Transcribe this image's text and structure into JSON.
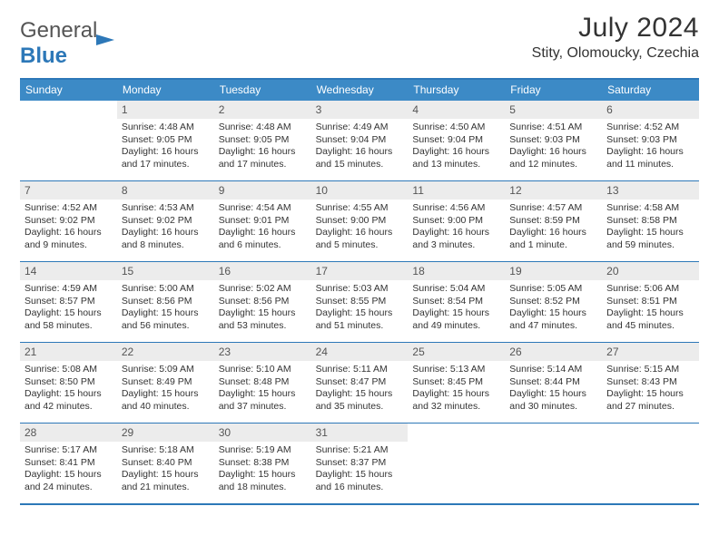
{
  "brand": {
    "part1": "General",
    "part2": "Blue"
  },
  "title": "July 2024",
  "location": "Stity, Olomoucky, Czechia",
  "dow": [
    "Sunday",
    "Monday",
    "Tuesday",
    "Wednesday",
    "Thursday",
    "Friday",
    "Saturday"
  ],
  "colors": {
    "accent": "#2d78b8",
    "header_bg": "#3c8ac6",
    "daynum_bg": "#ececec",
    "text": "#333333",
    "muted": "#555555"
  },
  "first_weekday_offset": 1,
  "days": [
    {
      "n": 1,
      "sunrise": "4:48 AM",
      "sunset": "9:05 PM",
      "daylight": "16 hours and 17 minutes."
    },
    {
      "n": 2,
      "sunrise": "4:48 AM",
      "sunset": "9:05 PM",
      "daylight": "16 hours and 17 minutes."
    },
    {
      "n": 3,
      "sunrise": "4:49 AM",
      "sunset": "9:04 PM",
      "daylight": "16 hours and 15 minutes."
    },
    {
      "n": 4,
      "sunrise": "4:50 AM",
      "sunset": "9:04 PM",
      "daylight": "16 hours and 13 minutes."
    },
    {
      "n": 5,
      "sunrise": "4:51 AM",
      "sunset": "9:03 PM",
      "daylight": "16 hours and 12 minutes."
    },
    {
      "n": 6,
      "sunrise": "4:52 AM",
      "sunset": "9:03 PM",
      "daylight": "16 hours and 11 minutes."
    },
    {
      "n": 7,
      "sunrise": "4:52 AM",
      "sunset": "9:02 PM",
      "daylight": "16 hours and 9 minutes."
    },
    {
      "n": 8,
      "sunrise": "4:53 AM",
      "sunset": "9:02 PM",
      "daylight": "16 hours and 8 minutes."
    },
    {
      "n": 9,
      "sunrise": "4:54 AM",
      "sunset": "9:01 PM",
      "daylight": "16 hours and 6 minutes."
    },
    {
      "n": 10,
      "sunrise": "4:55 AM",
      "sunset": "9:00 PM",
      "daylight": "16 hours and 5 minutes."
    },
    {
      "n": 11,
      "sunrise": "4:56 AM",
      "sunset": "9:00 PM",
      "daylight": "16 hours and 3 minutes."
    },
    {
      "n": 12,
      "sunrise": "4:57 AM",
      "sunset": "8:59 PM",
      "daylight": "16 hours and 1 minute."
    },
    {
      "n": 13,
      "sunrise": "4:58 AM",
      "sunset": "8:58 PM",
      "daylight": "15 hours and 59 minutes."
    },
    {
      "n": 14,
      "sunrise": "4:59 AM",
      "sunset": "8:57 PM",
      "daylight": "15 hours and 58 minutes."
    },
    {
      "n": 15,
      "sunrise": "5:00 AM",
      "sunset": "8:56 PM",
      "daylight": "15 hours and 56 minutes."
    },
    {
      "n": 16,
      "sunrise": "5:02 AM",
      "sunset": "8:56 PM",
      "daylight": "15 hours and 53 minutes."
    },
    {
      "n": 17,
      "sunrise": "5:03 AM",
      "sunset": "8:55 PM",
      "daylight": "15 hours and 51 minutes."
    },
    {
      "n": 18,
      "sunrise": "5:04 AM",
      "sunset": "8:54 PM",
      "daylight": "15 hours and 49 minutes."
    },
    {
      "n": 19,
      "sunrise": "5:05 AM",
      "sunset": "8:52 PM",
      "daylight": "15 hours and 47 minutes."
    },
    {
      "n": 20,
      "sunrise": "5:06 AM",
      "sunset": "8:51 PM",
      "daylight": "15 hours and 45 minutes."
    },
    {
      "n": 21,
      "sunrise": "5:08 AM",
      "sunset": "8:50 PM",
      "daylight": "15 hours and 42 minutes."
    },
    {
      "n": 22,
      "sunrise": "5:09 AM",
      "sunset": "8:49 PM",
      "daylight": "15 hours and 40 minutes."
    },
    {
      "n": 23,
      "sunrise": "5:10 AM",
      "sunset": "8:48 PM",
      "daylight": "15 hours and 37 minutes."
    },
    {
      "n": 24,
      "sunrise": "5:11 AM",
      "sunset": "8:47 PM",
      "daylight": "15 hours and 35 minutes."
    },
    {
      "n": 25,
      "sunrise": "5:13 AM",
      "sunset": "8:45 PM",
      "daylight": "15 hours and 32 minutes."
    },
    {
      "n": 26,
      "sunrise": "5:14 AM",
      "sunset": "8:44 PM",
      "daylight": "15 hours and 30 minutes."
    },
    {
      "n": 27,
      "sunrise": "5:15 AM",
      "sunset": "8:43 PM",
      "daylight": "15 hours and 27 minutes."
    },
    {
      "n": 28,
      "sunrise": "5:17 AM",
      "sunset": "8:41 PM",
      "daylight": "15 hours and 24 minutes."
    },
    {
      "n": 29,
      "sunrise": "5:18 AM",
      "sunset": "8:40 PM",
      "daylight": "15 hours and 21 minutes."
    },
    {
      "n": 30,
      "sunrise": "5:19 AM",
      "sunset": "8:38 PM",
      "daylight": "15 hours and 18 minutes."
    },
    {
      "n": 31,
      "sunrise": "5:21 AM",
      "sunset": "8:37 PM",
      "daylight": "15 hours and 16 minutes."
    }
  ],
  "labels": {
    "sunrise": "Sunrise:",
    "sunset": "Sunset:",
    "daylight": "Daylight:"
  }
}
